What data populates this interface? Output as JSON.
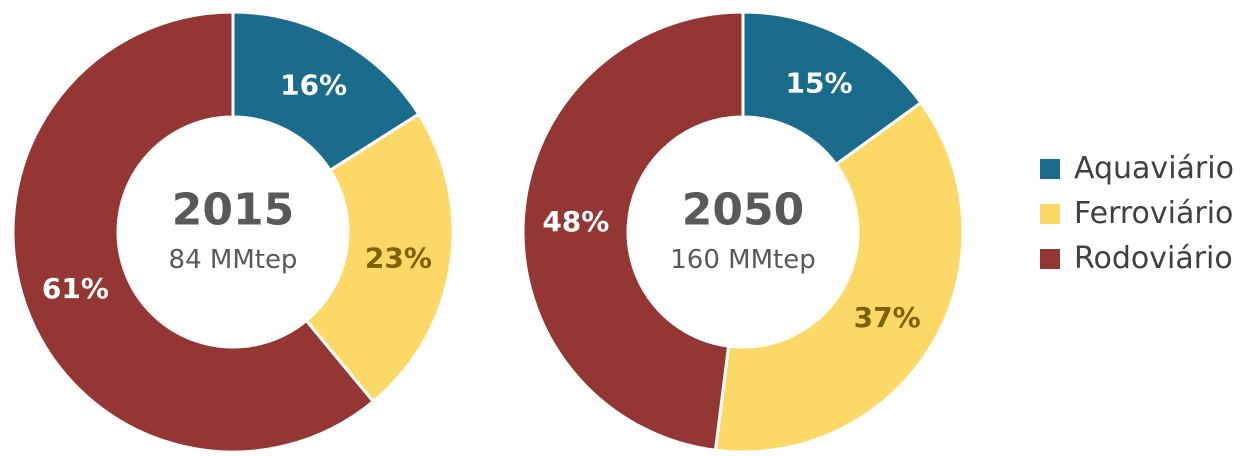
{
  "chart_data": [
    {
      "type": "pie",
      "center_title": "2015",
      "center_subtitle": "84 MMtep",
      "categories": [
        "Aquaviário",
        "Ferroviário",
        "Rodoviário"
      ],
      "values": [
        16,
        23,
        61
      ],
      "labels": [
        "16%",
        "23%",
        "61%"
      ],
      "colors": [
        "#1a6b8c",
        "#fcd966",
        "#943634"
      ],
      "label_colors": [
        "#ffffff",
        "#7f6000",
        "#ffffff"
      ]
    },
    {
      "type": "pie",
      "center_title": "2050",
      "center_subtitle": "160 MMtep",
      "categories": [
        "Aquaviário",
        "Ferroviário",
        "Rodoviário"
      ],
      "values": [
        15,
        37,
        48
      ],
      "labels": [
        "15%",
        "37%",
        "48%"
      ],
      "colors": [
        "#1a6b8c",
        "#fcd966",
        "#943634"
      ],
      "label_colors": [
        "#ffffff",
        "#7f6000",
        "#ffffff"
      ]
    }
  ],
  "legend": {
    "items": [
      {
        "label": "Aquaviário",
        "color": "#1a6b8c"
      },
      {
        "label": "Ferroviário",
        "color": "#fcd966"
      },
      {
        "label": "Rodoviário",
        "color": "#943634"
      }
    ]
  }
}
